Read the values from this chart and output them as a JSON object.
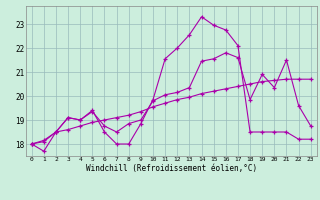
{
  "xlabel": "Windchill (Refroidissement éolien,°C)",
  "x_ticks": [
    0,
    1,
    2,
    3,
    4,
    5,
    6,
    7,
    8,
    9,
    10,
    11,
    12,
    13,
    14,
    15,
    16,
    17,
    18,
    19,
    20,
    21,
    22,
    23
  ],
  "ylim": [
    17.5,
    23.75
  ],
  "y_ticks": [
    18,
    19,
    20,
    21,
    22,
    23
  ],
  "background_color": "#cceedd",
  "line_color": "#aa00aa",
  "grid_color": "#99bbbb",
  "line1_x": [
    0,
    1,
    2,
    3,
    4,
    5,
    6,
    7,
    8,
    9,
    10,
    11,
    12,
    13,
    14,
    15,
    16,
    17,
    18,
    19,
    20,
    21,
    22,
    23
  ],
  "line1_y": [
    18.0,
    17.7,
    18.5,
    19.1,
    19.0,
    19.4,
    18.5,
    18.0,
    18.0,
    18.85,
    19.85,
    21.55,
    22.0,
    22.55,
    23.3,
    22.95,
    22.75,
    22.1,
    18.5,
    18.5,
    18.5,
    18.5,
    18.2,
    18.2
  ],
  "line2_x": [
    0,
    1,
    2,
    3,
    4,
    5,
    6,
    7,
    8,
    9,
    10,
    11,
    12,
    13,
    14,
    15,
    16,
    17,
    18,
    19,
    20,
    21,
    22,
    23
  ],
  "line2_y": [
    18.0,
    18.1,
    18.5,
    19.1,
    19.0,
    19.35,
    18.75,
    18.5,
    18.85,
    19.0,
    19.8,
    20.05,
    20.15,
    20.35,
    21.45,
    21.55,
    21.8,
    21.6,
    19.85,
    20.9,
    20.35,
    21.5,
    19.6,
    18.75
  ],
  "line3_x": [
    0,
    1,
    2,
    3,
    4,
    5,
    6,
    7,
    8,
    9,
    10,
    11,
    12,
    13,
    14,
    15,
    16,
    17,
    18,
    19,
    20,
    21,
    22,
    23
  ],
  "line3_y": [
    18.0,
    18.15,
    18.5,
    18.6,
    18.75,
    18.9,
    19.0,
    19.1,
    19.2,
    19.35,
    19.55,
    19.7,
    19.85,
    19.95,
    20.1,
    20.2,
    20.3,
    20.4,
    20.5,
    20.6,
    20.65,
    20.7,
    20.7,
    20.7
  ]
}
